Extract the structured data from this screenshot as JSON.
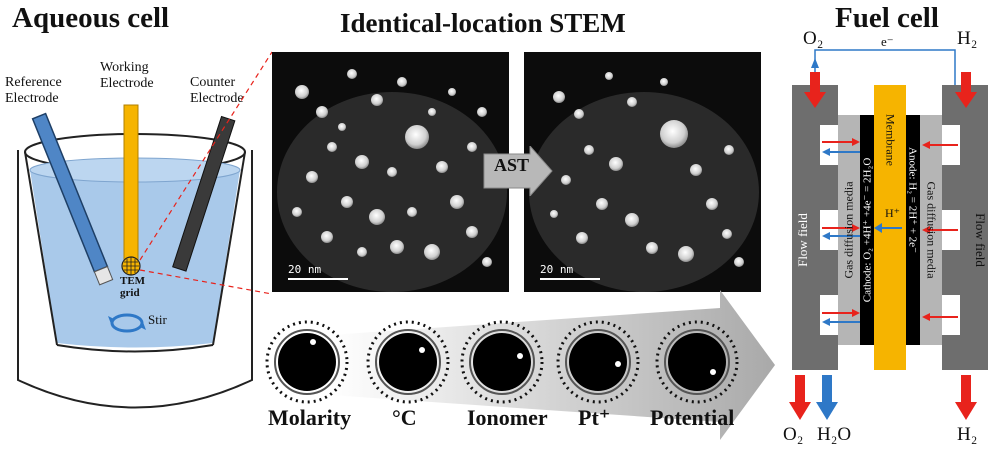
{
  "aqueous": {
    "title": "Aqueous cell",
    "reference": [
      "Reference",
      "Electrode"
    ],
    "working": [
      "Working",
      "Electrode"
    ],
    "counter": [
      "Counter",
      "Electrode"
    ],
    "tem": [
      "TEM",
      "grid"
    ],
    "stir": "Stir"
  },
  "stem": {
    "title": "Identical-location STEM",
    "scale_left": "20 nm",
    "scale_right": "20 nm",
    "ast": "AST"
  },
  "factors": [
    "Molarity",
    "°C",
    "Ionomer",
    "Pt⁺",
    "Potential"
  ],
  "fuel": {
    "title": "Fuel cell",
    "o2_top": "O₂",
    "electron": "e⁻",
    "h2_top": "H₂",
    "o2_bottom": "O₂",
    "h2o_bottom": "H₂O",
    "h2_bottom": "H₂",
    "hplus": "H⁺",
    "flow_left": "Flow field",
    "flow_right": "Flow field",
    "gdm_left": "Gas diffusion media",
    "gdm_right": "Gas diffusion media",
    "cathode": "Cathode: O₂ +4H⁺ +4e⁻ = 2H₂O",
    "anode": "Anode: H₂ = 2H⁺ + 2e⁻",
    "membrane": "Membrane"
  },
  "colors": {
    "electrolyte": "#a9c9ea",
    "working": "#f6b400",
    "reference": "#4f86c6",
    "counter": "#3a3a3a",
    "red_arrow": "#e8231c",
    "blue_arrow": "#2e78c7",
    "membrane": "#f6b400"
  }
}
